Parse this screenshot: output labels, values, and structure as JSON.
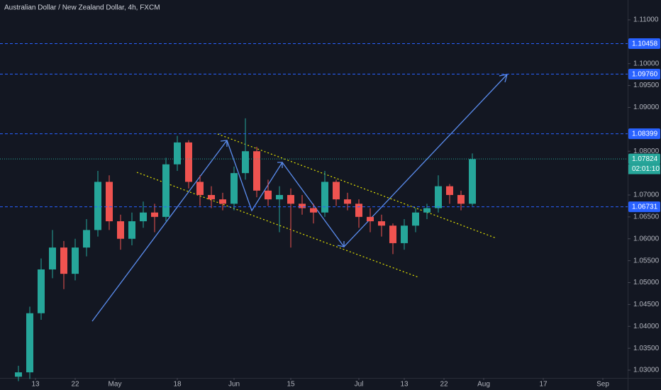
{
  "chart_data": {
    "type": "candlestick",
    "title": "Australian Dollar / New Zealand Dollar, 4h, FXCM",
    "x": [
      -3,
      -1,
      1,
      3,
      5,
      7,
      9,
      11,
      13,
      15,
      17,
      19,
      21,
      23,
      25,
      27,
      29,
      31,
      33,
      35,
      37,
      39,
      41,
      43,
      45,
      47,
      49,
      51,
      53,
      55,
      57,
      59,
      61,
      63,
      65,
      67,
      69,
      71,
      73,
      75,
      77
    ],
    "open": [
      1.0285,
      1.0295,
      1.043,
      1.053,
      1.058,
      1.052,
      1.058,
      1.062,
      1.073,
      1.064,
      1.06,
      1.064,
      1.066,
      1.065,
      1.077,
      1.082,
      1.073,
      1.07,
      1.069,
      1.068,
      1.075,
      1.08,
      1.071,
      1.069,
      1.07,
      1.068,
      1.067,
      1.066,
      1.073,
      1.069,
      1.068,
      1.065,
      1.064,
      1.063,
      1.059,
      1.063,
      1.066,
      1.067,
      1.072,
      1.07,
      1.068
    ],
    "high": [
      1.031,
      1.0445,
      1.0555,
      1.062,
      1.0595,
      1.06,
      1.0645,
      1.0755,
      1.0745,
      1.0655,
      1.066,
      1.0685,
      1.068,
      1.0785,
      1.0835,
      1.0825,
      1.0745,
      1.072,
      1.0705,
      1.0765,
      1.0875,
      1.081,
      1.0735,
      1.072,
      1.0715,
      1.07,
      1.068,
      1.0755,
      1.0735,
      1.0705,
      1.069,
      1.067,
      1.0655,
      1.0635,
      1.0645,
      1.067,
      1.068,
      1.0745,
      1.0725,
      1.071,
      1.0795
    ],
    "low": [
      1.0275,
      1.028,
      1.0415,
      1.051,
      1.0485,
      1.0505,
      1.056,
      1.0605,
      1.062,
      1.0575,
      1.0585,
      1.0625,
      1.0615,
      1.064,
      1.0755,
      1.0715,
      1.0675,
      1.067,
      1.0665,
      1.0665,
      1.0735,
      1.0695,
      1.0675,
      1.0615,
      1.058,
      1.0655,
      1.0635,
      1.065,
      1.0675,
      1.0665,
      1.0625,
      1.0615,
      1.0605,
      1.0565,
      1.0575,
      1.0615,
      1.0645,
      1.066,
      1.068,
      1.0665,
      1.0675
    ],
    "close": [
      1.0295,
      1.043,
      1.053,
      1.058,
      1.052,
      1.058,
      1.062,
      1.073,
      1.064,
      1.06,
      1.064,
      1.066,
      1.065,
      1.077,
      1.082,
      1.073,
      1.07,
      1.069,
      1.068,
      1.075,
      1.08,
      1.071,
      1.069,
      1.07,
      1.068,
      1.067,
      1.066,
      1.073,
      1.069,
      1.068,
      1.065,
      1.064,
      1.063,
      1.059,
      1.063,
      1.066,
      1.067,
      1.072,
      1.07,
      1.068,
      1.0782
    ],
    "up_color": "#26a69a",
    "down_color": "#ef5350",
    "xlim": [
      -6.25,
      104.375
    ],
    "xticks": [
      {
        "value": 0,
        "label": "13"
      },
      {
        "value": 7,
        "label": "22"
      },
      {
        "value": 14,
        "label": "May"
      },
      {
        "value": 25,
        "label": "18"
      },
      {
        "value": 35,
        "label": "Jun"
      },
      {
        "value": 45,
        "label": "15"
      },
      {
        "value": 57,
        "label": "Jul"
      },
      {
        "value": 65,
        "label": "13"
      },
      {
        "value": 72,
        "label": "22"
      },
      {
        "value": 79,
        "label": "Aug"
      },
      {
        "value": 89.5,
        "label": "17"
      },
      {
        "value": 100,
        "label": "Sep"
      }
    ],
    "ylim": [
      1.02822,
      1.11453
    ],
    "yticks": [
      {
        "value": 1.03,
        "label": "1.03000"
      },
      {
        "value": 1.035,
        "label": "1.03500"
      },
      {
        "value": 1.04,
        "label": "1.04000"
      },
      {
        "value": 1.045,
        "label": "1.04500"
      },
      {
        "value": 1.05,
        "label": "1.05000"
      },
      {
        "value": 1.055,
        "label": "1.05500"
      },
      {
        "value": 1.06,
        "label": "1.06000"
      },
      {
        "value": 1.065,
        "label": "1.06500"
      },
      {
        "value": 1.07,
        "label": "1.07000"
      },
      {
        "value": 1.08,
        "label": "1.08000"
      },
      {
        "value": 1.09,
        "label": "1.09000"
      },
      {
        "value": 1.095,
        "label": "1.09500"
      },
      {
        "value": 1.1,
        "label": "1.10000"
      },
      {
        "value": 1.11,
        "label": "1.11000"
      }
    ],
    "grid": false,
    "price_lines": [
      1.10458,
      {
        "value": 1.0976,
        "label": "1.09760"
      },
      1.08399,
      1.06731
    ],
    "price_line_color": "#2962ff",
    "current_price": 1.07824,
    "current_color": "#26a69a",
    "countdown": "02:01:10"
  }
}
